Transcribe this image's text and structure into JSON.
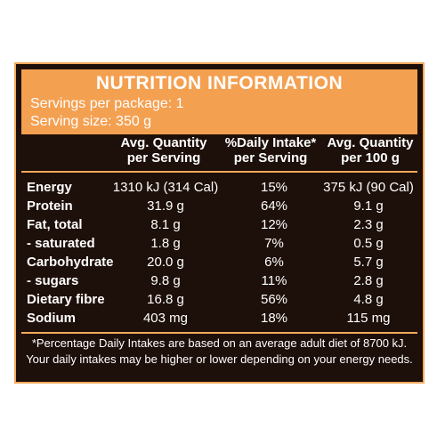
{
  "header": {
    "title": "NUTRITION INFORMATION",
    "servings": "Servings per package: 1",
    "serving_size": "Serving size: 350 g"
  },
  "columns": {
    "per_serving": [
      "Avg. Quantity",
      "per Serving"
    ],
    "daily_intake": [
      "%Daily Intake*",
      "per Serving"
    ],
    "per_100g": [
      "Avg. Quantity",
      "per 100 g"
    ]
  },
  "rows": [
    {
      "label": "Energy",
      "per_serving": "1310 kJ (314 Cal)",
      "daily_intake": "15%",
      "per_100g": "375 kJ (90 Cal)"
    },
    {
      "label": "Protein",
      "per_serving": "31.9 g",
      "daily_intake": "64%",
      "per_100g": "9.1 g"
    },
    {
      "label": "Fat, total",
      "per_serving": "8.1 g",
      "daily_intake": "12%",
      "per_100g": "2.3 g"
    },
    {
      "label": "- saturated",
      "per_serving": "1.8 g",
      "daily_intake": "7%",
      "per_100g": "0.5 g"
    },
    {
      "label": "Carbohydrate",
      "per_serving": "20.0 g",
      "daily_intake": "6%",
      "per_100g": "5.7 g"
    },
    {
      "label": "- sugars",
      "per_serving": "9.8 g",
      "daily_intake": "11%",
      "per_100g": "2.8 g"
    },
    {
      "label": "Dietary fibre",
      "per_serving": "16.8 g",
      "daily_intake": "56%",
      "per_100g": "4.8 g"
    },
    {
      "label": "Sodium",
      "per_serving": "403 mg",
      "daily_intake": "18%",
      "per_100g": "115 mg"
    }
  ],
  "footnote": [
    "*Percentage Daily Intakes are based on an average adult diet of 8700 kJ.",
    "Your daily intakes may be higher or lower depending on your energy needs."
  ],
  "colors": {
    "background": "#1d0f09",
    "accent": "#f4a051",
    "text": "#ffffff"
  }
}
